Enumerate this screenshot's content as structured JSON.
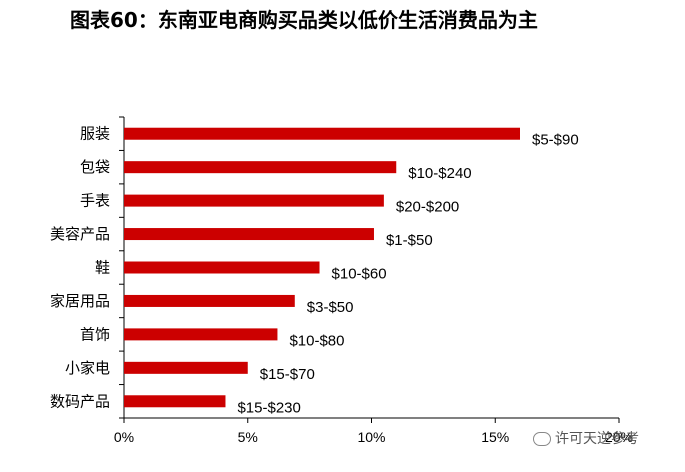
{
  "title": "图表60：东南亚电商购买品类以低价生活消费品为主",
  "chart_data": {
    "type": "bar",
    "orientation": "horizontal",
    "title": "图表60：东南亚电商购买品类以低价生活消费品为主",
    "xlabel": "",
    "ylabel": "",
    "xlim": [
      0,
      20
    ],
    "x_ticks": [
      "0%",
      "5%",
      "10%",
      "15%",
      "20%"
    ],
    "x_tick_values": [
      0,
      5,
      10,
      15,
      20
    ],
    "grid": false,
    "bar_color": "#CC0000",
    "categories": [
      "服装",
      "包袋",
      "手表",
      "美容产品",
      "鞋",
      "家居用品",
      "首饰",
      "小家电",
      "数码产品"
    ],
    "values": [
      16.0,
      11.0,
      10.5,
      10.1,
      7.9,
      6.9,
      6.2,
      5.0,
      4.1
    ],
    "unit": "%",
    "price_ranges": [
      "$5-$90",
      "$10-$240",
      "$20-$200",
      "$1-$50",
      "$10-$60",
      "$3-$50",
      "$10-$80",
      "$15-$70",
      "$15-$230"
    ]
  },
  "watermark": "许可天逆参考",
  "watermark_icon": "wechat-icon"
}
